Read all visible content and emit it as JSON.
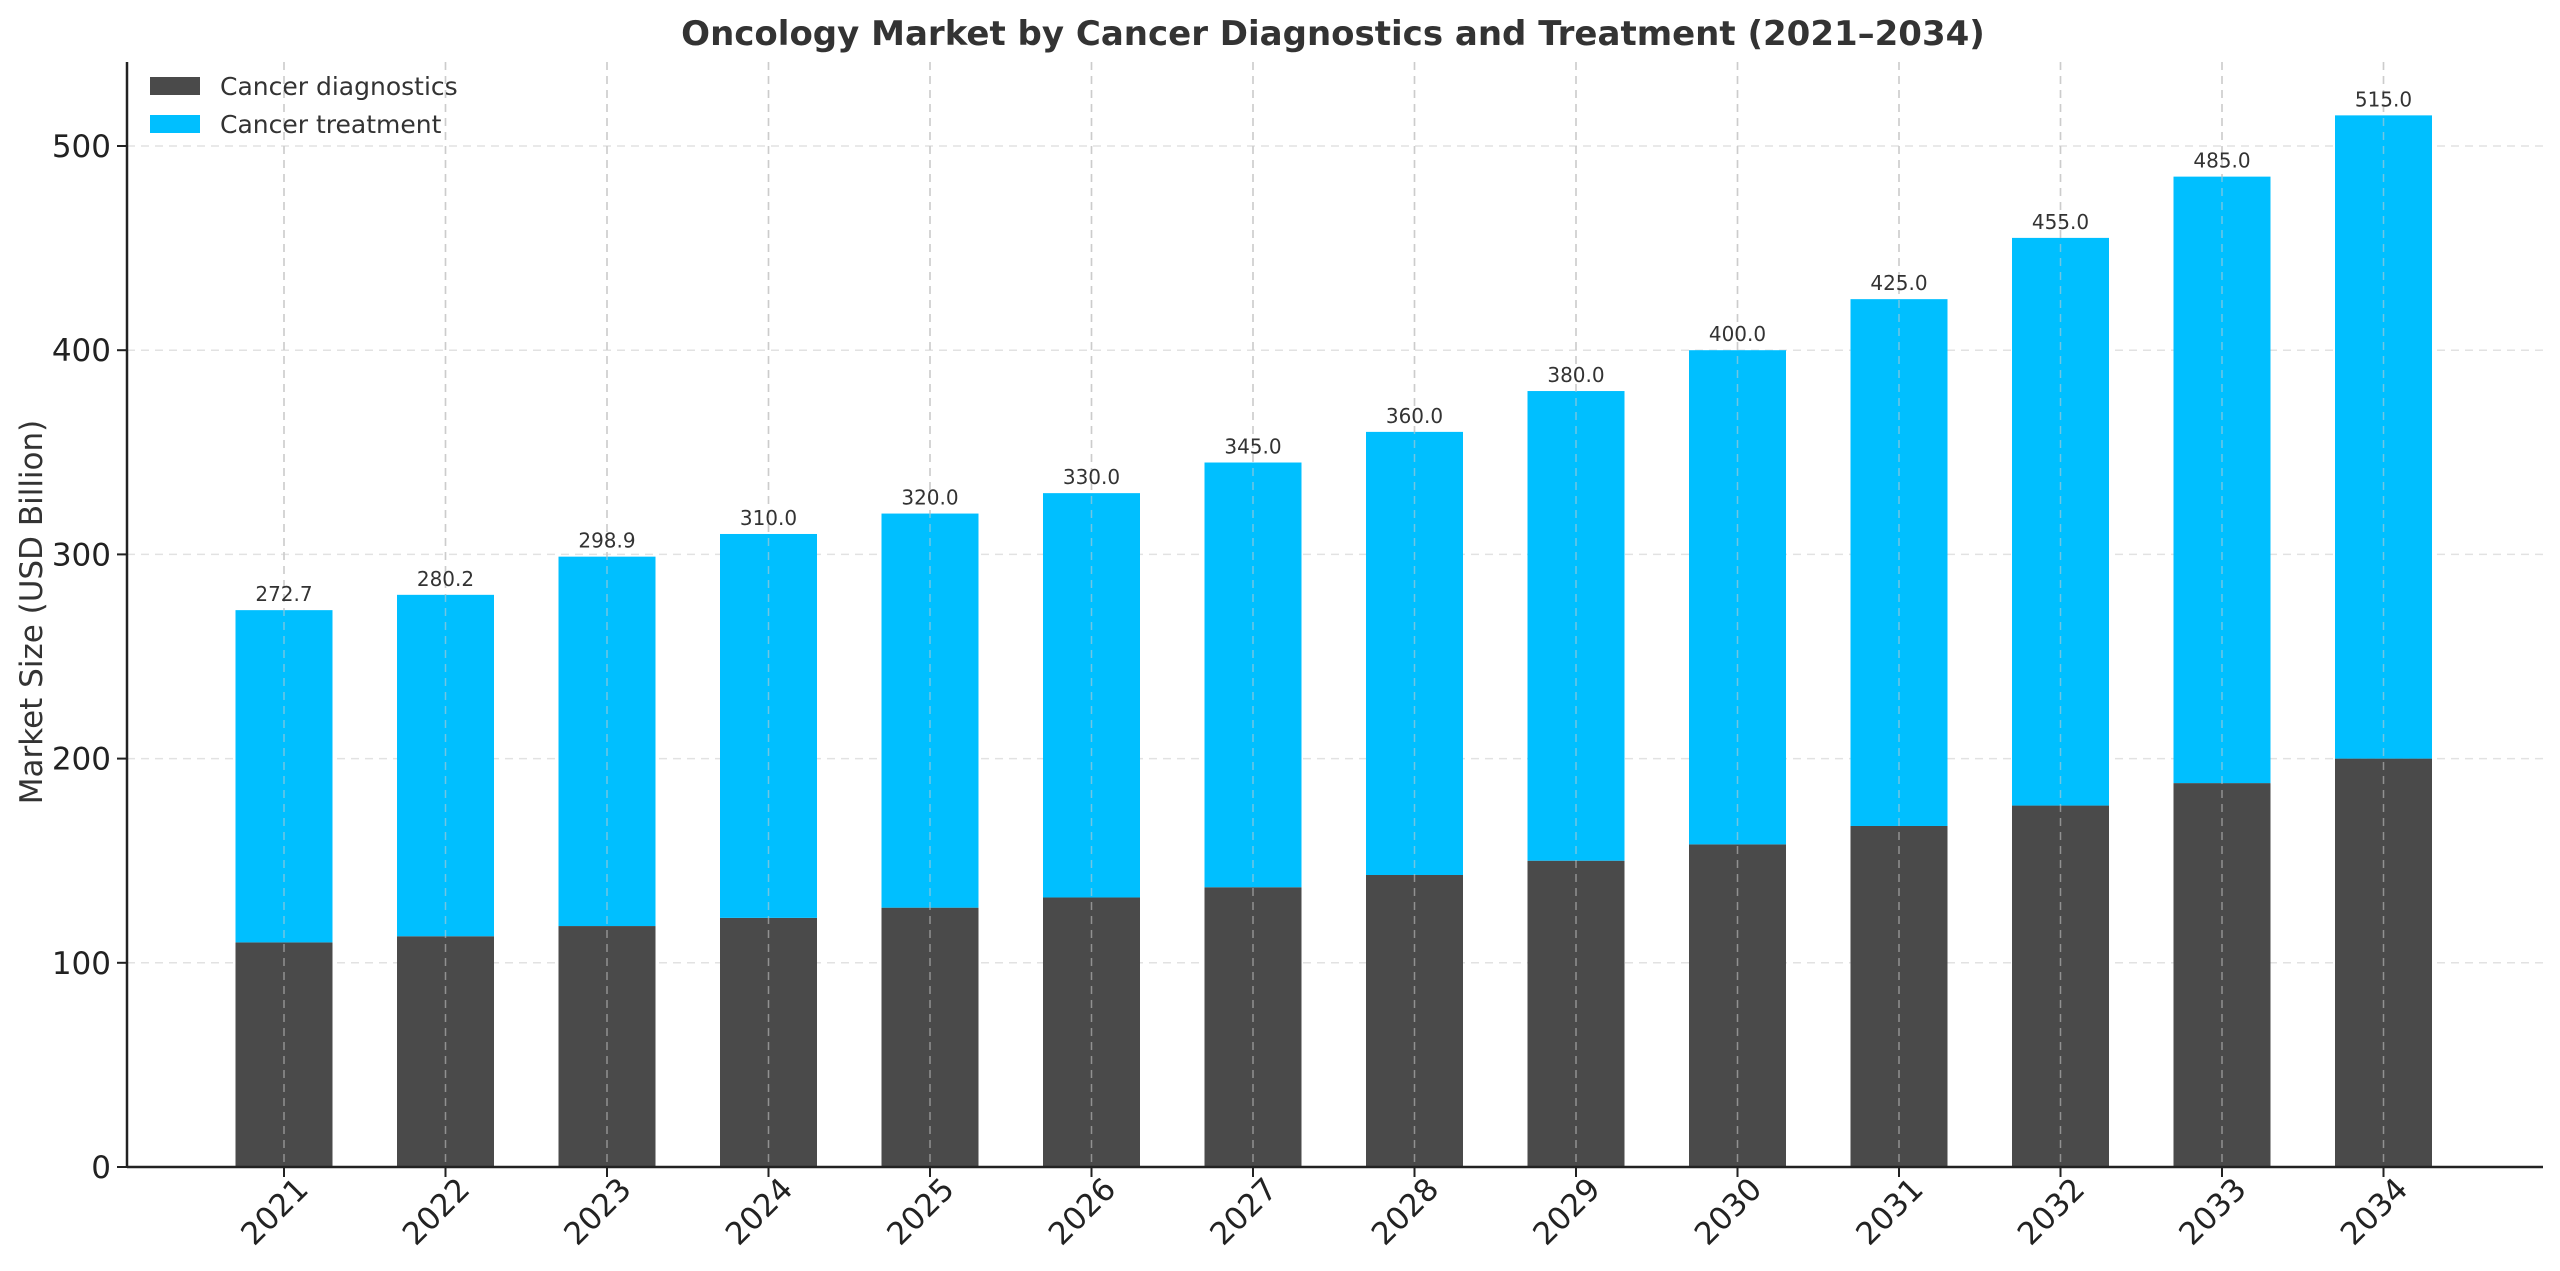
{
  "chart_data": {
    "type": "bar",
    "stacked": true,
    "title": "Oncology Market by Cancer Diagnostics and Treatment (2021–2034)",
    "xlabel": "",
    "ylabel": "Market Size (USD Billion)",
    "ylim": [
      0,
      540
    ],
    "yticks": [
      0,
      100,
      200,
      300,
      400,
      500
    ],
    "grid": true,
    "legend_position": "top-left",
    "categories": [
      "2021",
      "2022",
      "2023",
      "2024",
      "2025",
      "2026",
      "2027",
      "2028",
      "2029",
      "2030",
      "2031",
      "2032",
      "2033",
      "2034"
    ],
    "series": [
      {
        "name": "Cancer diagnostics",
        "color": "#4a4a4a",
        "values": [
          110,
          113,
          118,
          122,
          127,
          132,
          137,
          143,
          150,
          158,
          167,
          177,
          188,
          200
        ]
      },
      {
        "name": "Cancer treatment",
        "color": "#00bfff",
        "values": [
          162.7,
          167.2,
          180.9,
          188.0,
          193.0,
          198.0,
          208.0,
          217.0,
          230.0,
          242.0,
          258.0,
          278.0,
          297.0,
          315.0
        ]
      }
    ],
    "totals": [
      "272.7",
      "280.2",
      "298.9",
      "310.0",
      "320.0",
      "330.0",
      "345.0",
      "360.0",
      "380.0",
      "400.0",
      "425.0",
      "455.0",
      "485.0",
      "515.0"
    ]
  }
}
